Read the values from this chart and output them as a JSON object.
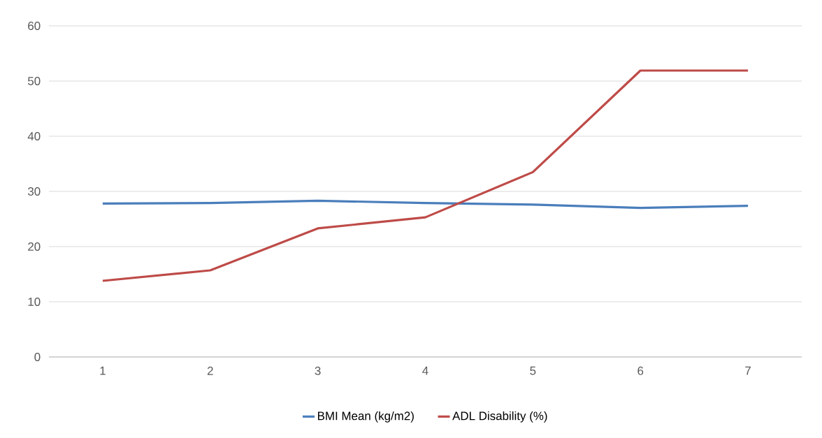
{
  "chart_data": {
    "type": "line",
    "categories": [
      "1",
      "2",
      "3",
      "4",
      "5",
      "6",
      "7"
    ],
    "series": [
      {
        "name": "BMI Mean (kg/m2)",
        "color": "#4a7ebb",
        "values": [
          27.8,
          27.9,
          28.3,
          27.9,
          27.6,
          27.0,
          27.4
        ]
      },
      {
        "name": "ADL Disability (%)",
        "color": "#be4b48",
        "values": [
          13.8,
          15.7,
          23.3,
          25.3,
          33.5,
          51.9,
          51.9
        ]
      }
    ],
    "ylim": [
      0,
      60
    ],
    "yticks": [
      0,
      10,
      20,
      30,
      40,
      50,
      60
    ],
    "grid": "y",
    "legend": "bottom",
    "marker": "none",
    "line_style": "solid"
  }
}
